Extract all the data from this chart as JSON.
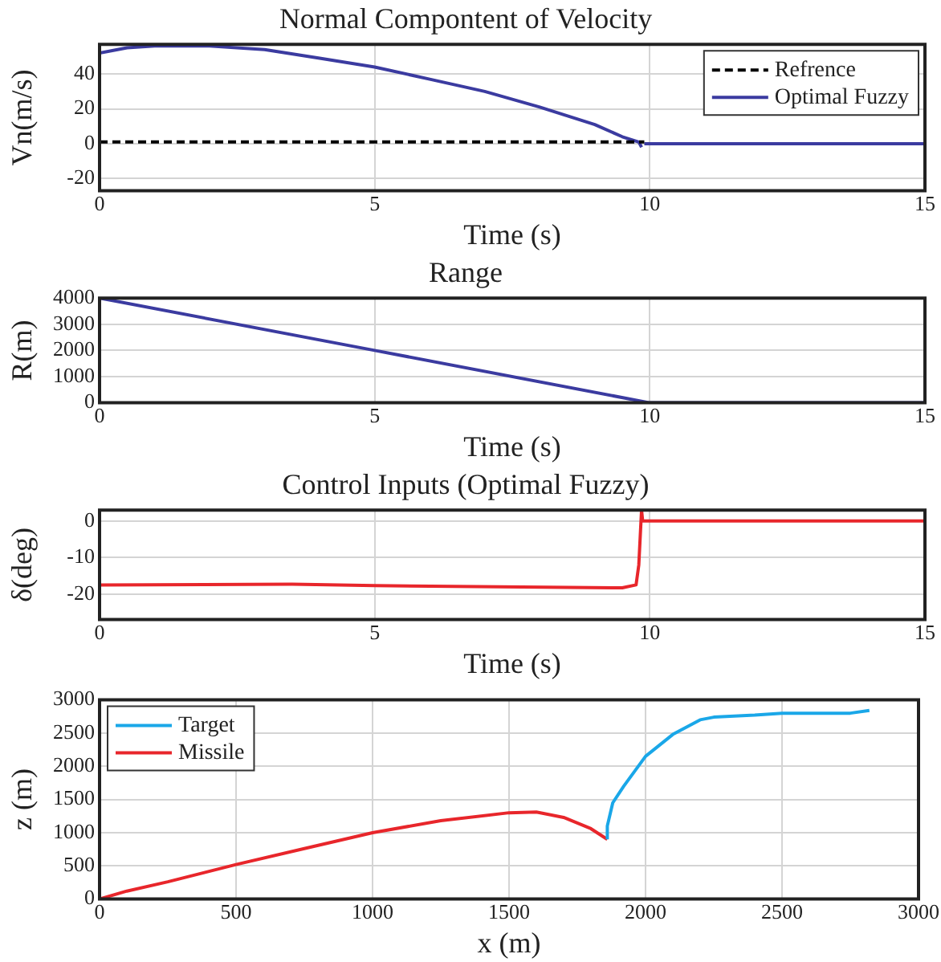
{
  "chart_data": [
    {
      "type": "line",
      "title": "Normal Compontent of Velocity",
      "xlabel": "Time (s)",
      "ylabel": "Vn(m/s)",
      "xlim": [
        0,
        15
      ],
      "xticks": [
        0,
        5,
        10,
        15
      ],
      "ylim": [
        -27,
        57
      ],
      "yticks": [
        -20,
        0,
        20,
        40
      ],
      "grid": true,
      "legend": "top right",
      "series": [
        {
          "name": "Refrence",
          "color": "#000000",
          "line_style": "dashed",
          "x": [
            0,
            9.9
          ],
          "values": [
            1,
            1
          ]
        },
        {
          "name": "Optimal Fuzzy",
          "color": "#3b3ba0",
          "line_style": "solid",
          "x": [
            0,
            0.5,
            1,
            2,
            3,
            4,
            5,
            6,
            7,
            8,
            9,
            9.5,
            9.8,
            9.85,
            9.88,
            9.9,
            15
          ],
          "values": [
            52,
            55,
            56,
            56,
            54,
            49,
            44,
            37,
            30,
            21,
            11,
            4,
            1,
            -2,
            null,
            0,
            0
          ]
        }
      ]
    },
    {
      "type": "line",
      "title": "Range",
      "xlabel": "Time (s)",
      "ylabel": "R(m)",
      "xlim": [
        0,
        15
      ],
      "xticks": [
        0,
        5,
        10,
        15
      ],
      "ylim": [
        0,
        4000
      ],
      "yticks": [
        0,
        1000,
        2000,
        3000,
        4000
      ],
      "grid": true,
      "series": [
        {
          "color": "#3b3ba0",
          "line_style": "solid",
          "x": [
            0,
            5,
            10,
            15
          ],
          "values": [
            4000,
            2000,
            0,
            0
          ]
        }
      ]
    },
    {
      "type": "line",
      "title": "Control Inputs (Optimal Fuzzy)",
      "xlabel": "Time (s)",
      "ylabel": "δ(deg)",
      "xlim": [
        0,
        15
      ],
      "xticks": [
        0,
        5,
        10,
        15
      ],
      "ylim": [
        -27,
        3
      ],
      "yticks": [
        -20,
        -10,
        0
      ],
      "grid": true,
      "series": [
        {
          "color": "#e8262b",
          "line_style": "solid",
          "x": [
            0,
            3.5,
            5,
            9.5,
            9.75,
            9.8,
            9.85,
            9.87,
            15
          ],
          "values": [
            -17.5,
            -17.3,
            -17.7,
            -18.3,
            -17.5,
            -12,
            3,
            0,
            0
          ]
        }
      ]
    },
    {
      "type": "line",
      "xlabel": "x (m)",
      "ylabel": "z (m)",
      "xlim": [
        0,
        3000
      ],
      "xticks": [
        0,
        500,
        1000,
        1500,
        2000,
        2500,
        3000
      ],
      "ylim": [
        0,
        3000
      ],
      "yticks": [
        0,
        500,
        1000,
        1500,
        2000,
        2500,
        3000
      ],
      "grid": true,
      "legend": "top left",
      "series": [
        {
          "name": "Target",
          "color": "#1aa7e8",
          "line_style": "solid",
          "x": [
            1860,
            1860,
            1880,
            1920,
            2000,
            2100,
            2200,
            2250,
            2400,
            2500,
            2750,
            2820
          ],
          "values": [
            900,
            1100,
            1450,
            1700,
            2150,
            2480,
            2700,
            2740,
            2770,
            2800,
            2800,
            2840
          ]
        },
        {
          "name": "Missile",
          "color": "#e8262b",
          "line_style": "solid",
          "x": [
            0,
            100,
            250,
            500,
            750,
            1000,
            1250,
            1500,
            1600,
            1700,
            1800,
            1860
          ],
          "values": [
            0,
            120,
            260,
            520,
            760,
            1000,
            1180,
            1300,
            1310,
            1230,
            1060,
            900
          ]
        }
      ]
    }
  ]
}
